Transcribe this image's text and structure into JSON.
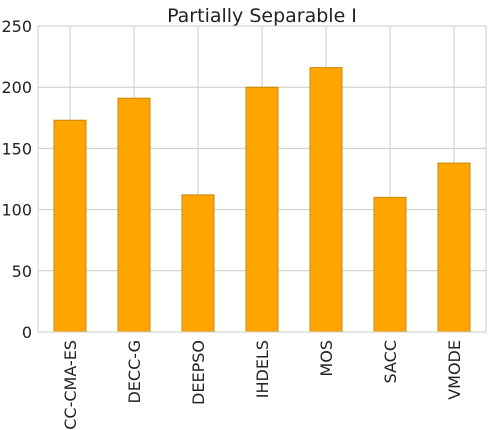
{
  "chart_data": {
    "type": "bar",
    "title": "Partially Separable I",
    "xlabel": "",
    "ylabel": "",
    "categories": [
      "CC-CMA-ES",
      "DECC-G",
      "DEEPSO",
      "IHDELS",
      "MOS",
      "SACC",
      "VMODE"
    ],
    "values": [
      173,
      191,
      112,
      200,
      216,
      110,
      138
    ],
    "ylim": [
      0,
      250
    ],
    "yticks": [
      0,
      50,
      100,
      150,
      200,
      250
    ],
    "grid": true,
    "bar_color": "#ffa500",
    "bar_edge_color": "#c8860a",
    "legend": "none"
  }
}
